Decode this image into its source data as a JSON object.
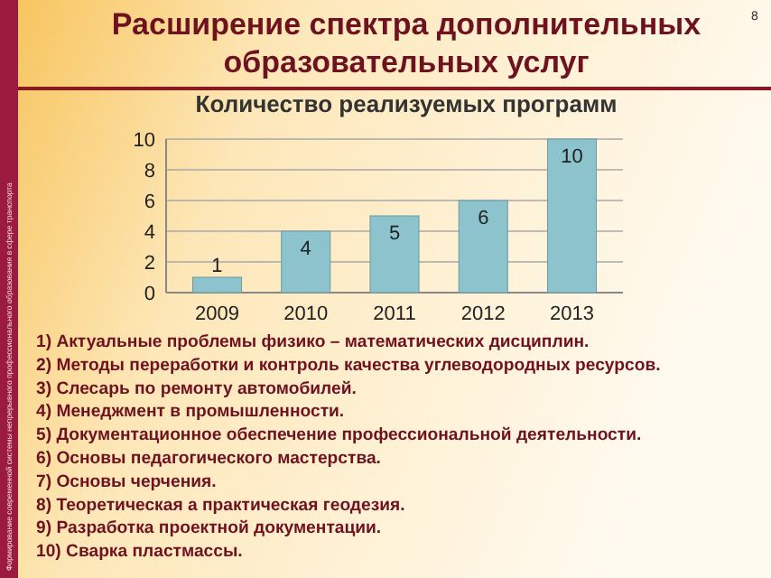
{
  "chart_data": {
    "type": "bar",
    "title": "Расширение спектра дополнительных образовательных услуг",
    "subtitle": "Количество реализуемых программ",
    "categories": [
      "2009",
      "2010",
      "2011",
      "2012",
      "2013"
    ],
    "values": [
      1,
      4,
      5,
      6,
      10
    ],
    "color": "#8cc3cc",
    "ylim": [
      0,
      10
    ],
    "yticks": [
      0,
      2,
      4,
      6,
      8,
      10
    ],
    "grid": "y",
    "data_labels": true,
    "annotations": [
      "8",
      "Формирование современной системы непрерывного профессионального образования в сфере транспорта",
      "1) Актуальные проблемы физико – математических дисциплин.",
      "2) Методы переработки и контроль качества углеводородных ресурсов.",
      "3) Слесарь по ремонту автомобилей.",
      "4) Менеджмент в промышленности.",
      "5) Документационное обеспечение профессиональной деятельности.",
      "6) Основы педагогического мастерства.",
      "7) Основы черчения.",
      "8) Теоретическая а практическая геодезия.",
      "9) Разработка проектной документации.",
      "10) Сварка пластмассы."
    ]
  }
}
